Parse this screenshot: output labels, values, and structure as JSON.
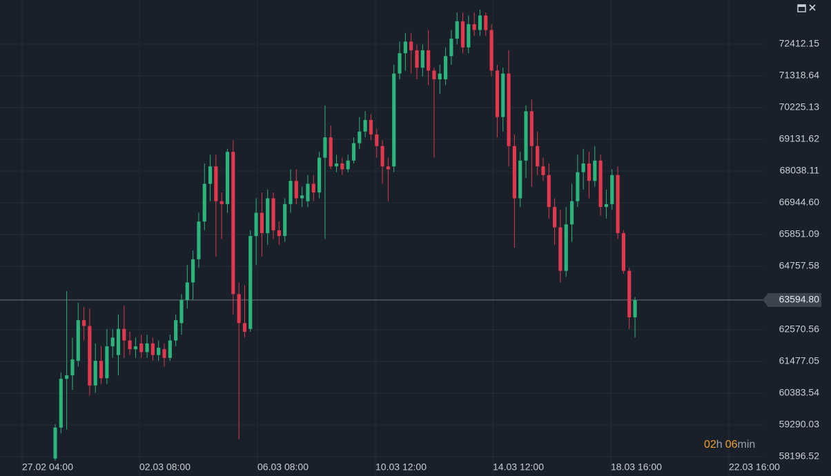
{
  "chart_data": {
    "type": "candlestick",
    "up_color": "#2db37c",
    "down_color": "#e0384d",
    "grid": true,
    "xlim": [
      -9.62,
      123.24
    ],
    "xticks": [
      {
        "value": -5.77,
        "label": "27.02 04:00"
      },
      {
        "value": 14.67,
        "label": "02.03 08:00"
      },
      {
        "value": 35.23,
        "label": "06.03 08:00"
      },
      {
        "value": 55.79,
        "label": "10.03 12:00"
      },
      {
        "value": 76.23,
        "label": "14.03 12:00"
      },
      {
        "value": 96.79,
        "label": "18.03 16:00"
      },
      {
        "value": 117.35,
        "label": "22.03 16:00"
      }
    ],
    "ylim": [
      57530.9,
      73933.55
    ],
    "yticks": [
      72412.15,
      71318.64,
      70225.13,
      69131.62,
      68038.11,
      66944.6,
      65851.09,
      64757.58,
      62570.56,
      61477.05,
      60383.54,
      59290.03,
      58196.52
    ],
    "ytick_labels": [
      "72412.15",
      "71318.64",
      "70225.13",
      "69131.62",
      "68038.11",
      "66944.60",
      "65851.09",
      "64757.58",
      "62570.56",
      "61477.05",
      "60383.54",
      "59290.03",
      "58196.52"
    ],
    "last_price": {
      "value": 63594.8,
      "label": "63594.80"
    },
    "timer": {
      "hours": "02",
      "h": "h",
      "minutes": "06",
      "min": "min"
    },
    "ohlc": {
      "open": [
        58130,
        59200,
        60880,
        61000,
        61500,
        62900,
        62700,
        60650,
        61500,
        60900,
        62000,
        61700,
        62600,
        62200,
        61900,
        62100,
        61800,
        62100,
        61700,
        61900,
        61600,
        62200,
        62800,
        63600,
        64200,
        65000,
        66300,
        67600,
        68200,
        67000,
        66900,
        68700,
        63800,
        62800,
        62600,
        65800,
        66600,
        65900,
        67100,
        66000,
        65800,
        66900,
        67700,
        67100,
        67000,
        67600,
        67300,
        68500,
        69200,
        68200,
        68300,
        68100,
        68400,
        69000,
        69400,
        69800,
        69300,
        68900,
        68200,
        68200,
        71400,
        72100,
        72500,
        72200,
        71600,
        72200,
        71500,
        71200,
        71200,
        72000,
        72600,
        73200,
        72300,
        73100,
        72900,
        73400,
        72900,
        71500,
        69900,
        71400,
        68900,
        67100,
        68400,
        70100,
        68900,
        68200,
        67900,
        66800,
        66100,
        64600,
        66200,
        67000,
        68000,
        68300,
        67700,
        68400,
        66800,
        66900,
        67900,
        65900,
        64600,
        63000
      ],
      "high": [
        59320,
        61100,
        63900,
        62300,
        63500,
        63350,
        63300,
        62100,
        62000,
        62600,
        62600,
        63100,
        63400,
        62500,
        62300,
        62400,
        62400,
        62300,
        62200,
        62100,
        62400,
        63100,
        63800,
        64800,
        65300,
        66600,
        68300,
        68600,
        68600,
        67300,
        68800,
        69100,
        64200,
        64100,
        66000,
        67100,
        67300,
        67400,
        67300,
        66300,
        67100,
        68100,
        68100,
        67500,
        67900,
        67900,
        68700,
        70300,
        69600,
        68600,
        68500,
        68600,
        69200,
        69900,
        70100,
        70000,
        69500,
        69100,
        68500,
        71700,
        72500,
        72800,
        72800,
        72400,
        72400,
        72900,
        71600,
        71700,
        72300,
        72900,
        73500,
        73500,
        73400,
        73500,
        73600,
        73500,
        73100,
        71700,
        71600,
        72200,
        69300,
        68700,
        70300,
        70500,
        69400,
        68500,
        68300,
        67100,
        66700,
        66800,
        67600,
        68600,
        68800,
        68700,
        68900,
        68600,
        67400,
        68100,
        68200,
        66000,
        64700,
        63700
      ],
      "low": [
        58050,
        59000,
        59130,
        60500,
        61300,
        62200,
        60300,
        60400,
        60700,
        60700,
        61600,
        61000,
        61600,
        61700,
        61600,
        61600,
        61600,
        61500,
        61500,
        61300,
        61500,
        62000,
        62400,
        63300,
        63600,
        64700,
        66000,
        67000,
        65100,
        65700,
        66600,
        63100,
        58800,
        62300,
        62500,
        64800,
        65100,
        65500,
        65700,
        65500,
        65600,
        66600,
        66900,
        66800,
        66800,
        67000,
        67100,
        65700,
        68100,
        68000,
        67900,
        68000,
        68300,
        68800,
        69200,
        69100,
        68500,
        67600,
        67000,
        68000,
        71200,
        71500,
        71400,
        71200,
        71300,
        71000,
        68500,
        70700,
        71000,
        71700,
        72400,
        72100,
        72100,
        72700,
        72700,
        72700,
        71300,
        69200,
        69400,
        68200,
        65400,
        66800,
        67800,
        67500,
        67900,
        67700,
        66400,
        65500,
        64200,
        64400,
        65600,
        66800,
        67400,
        67100,
        67500,
        66500,
        66400,
        66700,
        65700,
        64500,
        62600,
        62300
      ],
      "close": [
        59200,
        60880,
        61000,
        61550,
        62900,
        62700,
        60650,
        61500,
        60900,
        62000,
        62300,
        62600,
        62200,
        61900,
        62000,
        61800,
        62100,
        61700,
        61950,
        61600,
        62200,
        62900,
        63600,
        64200,
        65000,
        66300,
        67600,
        68200,
        67000,
        66900,
        68700,
        63800,
        62800,
        62500,
        65800,
        66600,
        65900,
        67100,
        66000,
        65800,
        66900,
        67700,
        67100,
        67200,
        67600,
        67300,
        68500,
        69200,
        68200,
        68300,
        68100,
        68400,
        69000,
        69400,
        69800,
        69300,
        68900,
        68200,
        68100,
        71400,
        72100,
        72500,
        72200,
        71600,
        72200,
        71500,
        71200,
        71400,
        72000,
        72600,
        73200,
        72300,
        73100,
        72900,
        73400,
        72900,
        71500,
        69900,
        71400,
        68900,
        67100,
        68400,
        70100,
        68900,
        68200,
        67900,
        66800,
        66100,
        64600,
        66200,
        67000,
        68000,
        68300,
        67700,
        68400,
        66800,
        66900,
        67900,
        65900,
        64600,
        63000,
        63594.8
      ]
    }
  }
}
